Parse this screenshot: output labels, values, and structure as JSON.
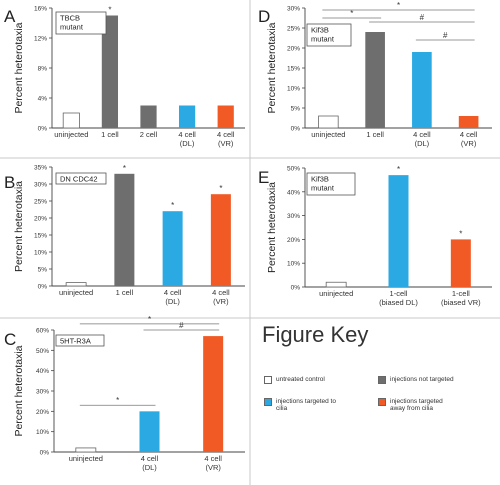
{
  "figure_key": {
    "title": "Figure Key",
    "items": [
      {
        "label": "untreated control",
        "color": "#ffffff"
      },
      {
        "label": "injections not targeted",
        "color": "#6e6e6e"
      },
      {
        "label": "injections targeted to cilia",
        "color": "#2aa9e3"
      },
      {
        "label": "injections targeted away from cilia",
        "color": "#f15a24"
      }
    ]
  },
  "chart_data": [
    {
      "panel": "A",
      "type": "bar",
      "inset": "TBCB mutant",
      "ylabel": "Percent heterotaxia",
      "ylim": [
        0,
        16
      ],
      "ytick_labels": [
        "0%",
        "4%",
        "8%",
        "12%",
        "16%"
      ],
      "categories": [
        [
          "uninjected"
        ],
        [
          "1 cell"
        ],
        [
          "2 cell"
        ],
        [
          "4 cell",
          "(DL)"
        ],
        [
          "4 cell",
          "(VR)"
        ]
      ],
      "values": [
        2,
        15,
        3,
        3,
        3
      ],
      "colors": [
        "#ffffff",
        "#6e6e6e",
        "#6e6e6e",
        "#2aa9e3",
        "#f15a24"
      ],
      "markers": [
        "",
        "*",
        "",
        "",
        ""
      ],
      "brackets": []
    },
    {
      "panel": "B",
      "type": "bar",
      "inset": "DN CDC42",
      "ylabel": "Percent heterotaxia",
      "ylim": [
        0,
        35
      ],
      "ytick_labels": [
        "0%",
        "5%",
        "10%",
        "15%",
        "20%",
        "25%",
        "30%",
        "35%"
      ],
      "categories": [
        [
          "uninjected"
        ],
        [
          "1 cell"
        ],
        [
          "4 cell",
          "(DL)"
        ],
        [
          "4 cell",
          "(VR)"
        ]
      ],
      "values": [
        1,
        33,
        22,
        27
      ],
      "colors": [
        "#ffffff",
        "#6e6e6e",
        "#2aa9e3",
        "#f15a24"
      ],
      "markers": [
        "",
        "*",
        "*",
        "*"
      ],
      "brackets": []
    },
    {
      "panel": "C",
      "type": "bar",
      "inset": "5HT-R3A",
      "ylabel": "Percent heterotaxia",
      "ylim": [
        0,
        60
      ],
      "ytick_labels": [
        "0%",
        "10%",
        "20%",
        "30%",
        "40%",
        "50%",
        "60%"
      ],
      "categories": [
        [
          "uninjected"
        ],
        [
          "4 cell",
          "(DL)"
        ],
        [
          "4 cell",
          "(VR)"
        ]
      ],
      "values": [
        2,
        20,
        57
      ],
      "colors": [
        "#ffffff",
        "#2aa9e3",
        "#f15a24"
      ],
      "markers": [
        "",
        "",
        ""
      ],
      "brackets": [
        {
          "from": 0,
          "to": 1,
          "y": 23,
          "label": "*"
        },
        {
          "from": 0,
          "to": 2,
          "y": 63,
          "label": "*"
        },
        {
          "from": 1,
          "to": 2,
          "y": 60,
          "label": "#"
        }
      ]
    },
    {
      "panel": "D",
      "type": "bar",
      "inset": "Kif3B mutant",
      "ylabel": "Percent heterotaxia",
      "ylim": [
        0,
        30
      ],
      "ytick_labels": [
        "0%",
        "5%",
        "10%",
        "15%",
        "20%",
        "25%",
        "30%"
      ],
      "categories": [
        [
          "uninjected"
        ],
        [
          "1 cell"
        ],
        [
          "4 cell",
          "(DL)"
        ],
        [
          "4 cell",
          "(VR)"
        ]
      ],
      "values": [
        3,
        24,
        19,
        3
      ],
      "colors": [
        "#ffffff",
        "#6e6e6e",
        "#2aa9e3",
        "#f15a24"
      ],
      "markers": [
        "",
        "",
        "",
        ""
      ],
      "brackets": [
        {
          "from": 0,
          "to": 3,
          "y": 29.5,
          "label": "*"
        },
        {
          "from": 0,
          "to": 1,
          "y": 27.5,
          "label": "*"
        },
        {
          "from": 1,
          "to": 3,
          "y": 26.5,
          "label": "#"
        },
        {
          "from": 2,
          "to": 3,
          "y": 22,
          "label": "#"
        }
      ]
    },
    {
      "panel": "E",
      "type": "bar",
      "inset": "Kif3B mutant",
      "ylabel": "Percent heterotaxia",
      "ylim": [
        0,
        50
      ],
      "ytick_labels": [
        "0%",
        "10%",
        "20%",
        "30%",
        "40%",
        "50%"
      ],
      "categories": [
        [
          "uninjected"
        ],
        [
          "1-cell",
          "(biased DL)"
        ],
        [
          "1-cell",
          "(biased VR)"
        ]
      ],
      "values": [
        2,
        47,
        20
      ],
      "colors": [
        "#ffffff",
        "#2aa9e3",
        "#f15a24"
      ],
      "markers": [
        "",
        "*",
        "*"
      ],
      "brackets": []
    }
  ]
}
